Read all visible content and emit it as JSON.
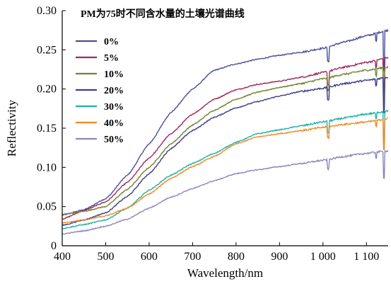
{
  "chart_data": {
    "type": "line",
    "title": "PM为75时不同含水量的土壤光谱曲线",
    "xlabel": "Wavelength/nm",
    "ylabel": "Reflectivity",
    "xlim": [
      400,
      1150
    ],
    "ylim": [
      0,
      0.3
    ],
    "x_ticks": [
      {
        "value": 400,
        "label": "400"
      },
      {
        "value": 500,
        "label": "500"
      },
      {
        "value": 600,
        "label": "600"
      },
      {
        "value": 700,
        "label": "700"
      },
      {
        "value": 800,
        "label": "800"
      },
      {
        "value": 900,
        "label": "900"
      },
      {
        "value": 1000,
        "label": "1 000"
      },
      {
        "value": 1100,
        "label": "1 100"
      }
    ],
    "y_ticks": [
      {
        "value": 0,
        "label": "0"
      },
      {
        "value": 0.05,
        "label": "0.05"
      },
      {
        "value": 0.1,
        "label": "0.10"
      },
      {
        "value": 0.15,
        "label": "0.15"
      },
      {
        "value": 0.2,
        "label": "0.20"
      },
      {
        "value": 0.25,
        "label": "0.25"
      },
      {
        "value": 0.3,
        "label": "0.30"
      }
    ],
    "legend_position": "top-left",
    "grid": false,
    "x": [
      400,
      450,
      500,
      550,
      600,
      650,
      700,
      750,
      800,
      850,
      900,
      950,
      1000,
      1050,
      1100,
      1150
    ],
    "series": [
      {
        "name": "0%",
        "color": "#4a4f96",
        "values": [
          0.039,
          0.046,
          0.06,
          0.09,
          0.13,
          0.17,
          0.2,
          0.224,
          0.232,
          0.238,
          0.243,
          0.247,
          0.252,
          0.26,
          0.268,
          0.275
        ]
      },
      {
        "name": "5%",
        "color": "#a1285e",
        "values": [
          0.034,
          0.045,
          0.056,
          0.081,
          0.112,
          0.143,
          0.168,
          0.187,
          0.199,
          0.206,
          0.21,
          0.215,
          0.221,
          0.228,
          0.234,
          0.24
        ]
      },
      {
        "name": "10%",
        "color": "#71852e",
        "values": [
          0.04,
          0.044,
          0.05,
          0.072,
          0.1,
          0.13,
          0.154,
          0.173,
          0.187,
          0.196,
          0.202,
          0.207,
          0.213,
          0.219,
          0.224,
          0.228
        ]
      },
      {
        "name": "20%",
        "color": "#3c3f88",
        "values": [
          0.026,
          0.033,
          0.042,
          0.063,
          0.092,
          0.124,
          0.147,
          0.164,
          0.176,
          0.184,
          0.191,
          0.197,
          0.201,
          0.207,
          0.211,
          0.215
        ]
      },
      {
        "name": "30%",
        "color": "#1fb2a6",
        "values": [
          0.022,
          0.027,
          0.033,
          0.048,
          0.071,
          0.09,
          0.105,
          0.118,
          0.132,
          0.143,
          0.148,
          0.153,
          0.158,
          0.163,
          0.168,
          0.172
        ]
      },
      {
        "name": "40%",
        "color": "#f08a24",
        "values": [
          0.029,
          0.033,
          0.038,
          0.048,
          0.066,
          0.086,
          0.101,
          0.114,
          0.13,
          0.139,
          0.143,
          0.147,
          0.151,
          0.155,
          0.158,
          0.162
        ]
      },
      {
        "name": "50%",
        "color": "#8d86bf",
        "values": [
          0.015,
          0.019,
          0.025,
          0.034,
          0.048,
          0.062,
          0.073,
          0.083,
          0.092,
          0.097,
          0.101,
          0.105,
          0.109,
          0.114,
          0.118,
          0.121
        ]
      }
    ]
  }
}
